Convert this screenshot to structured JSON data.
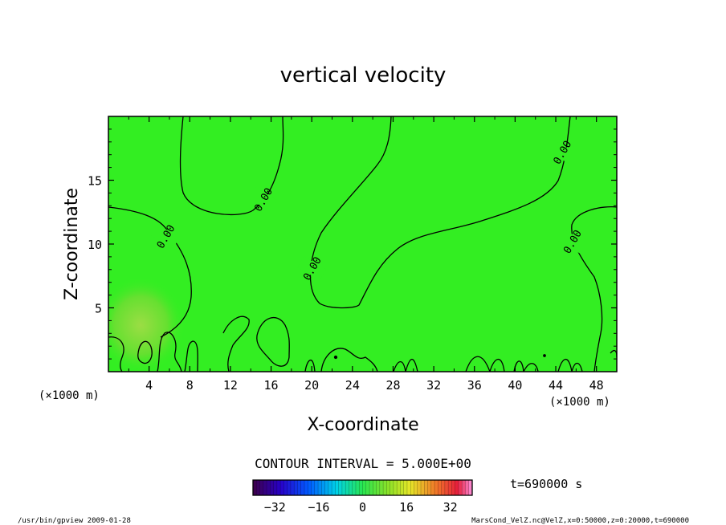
{
  "chart_data": {
    "type": "heatmap",
    "title": "vertical velocity",
    "xlabel": "X-coordinate",
    "ylabel": "Z-coordinate",
    "xunit": "(×1000 m)",
    "xlim": [
      0,
      50
    ],
    "ylim": [
      0,
      20
    ],
    "xticks": [
      4,
      8,
      12,
      16,
      20,
      24,
      28,
      32,
      36,
      40,
      44,
      48
    ],
    "yticks": [
      5,
      10,
      15
    ],
    "contour_label": "0.00",
    "contour_labels": [
      {
        "x": 5.6,
        "y": 10.6
      },
      {
        "x": 15.2,
        "y": 13.5
      },
      {
        "x": 20.0,
        "y": 8.1
      },
      {
        "x": 44.6,
        "y": 17.2
      },
      {
        "x": 45.6,
        "y": 10.2
      }
    ],
    "contour_interval_text": "CONTOUR INTERVAL = 5.000E+00",
    "colorbar": {
      "min": -40,
      "max": 40,
      "ticks": [
        -32,
        -16,
        0,
        16,
        32
      ],
      "tick_labels": [
        "−32",
        "−16",
        "0",
        "16",
        "32"
      ]
    },
    "time_text": "t=690000 s",
    "footer_left": "/usr/bin/gpview  2009-01-28",
    "footer_right": "MarsCond_VelZ.nc@VelZ,x=0:50000,z=0:20000,t=690000",
    "colors": {
      "field": "#33ee22",
      "contour": "#000000"
    }
  }
}
